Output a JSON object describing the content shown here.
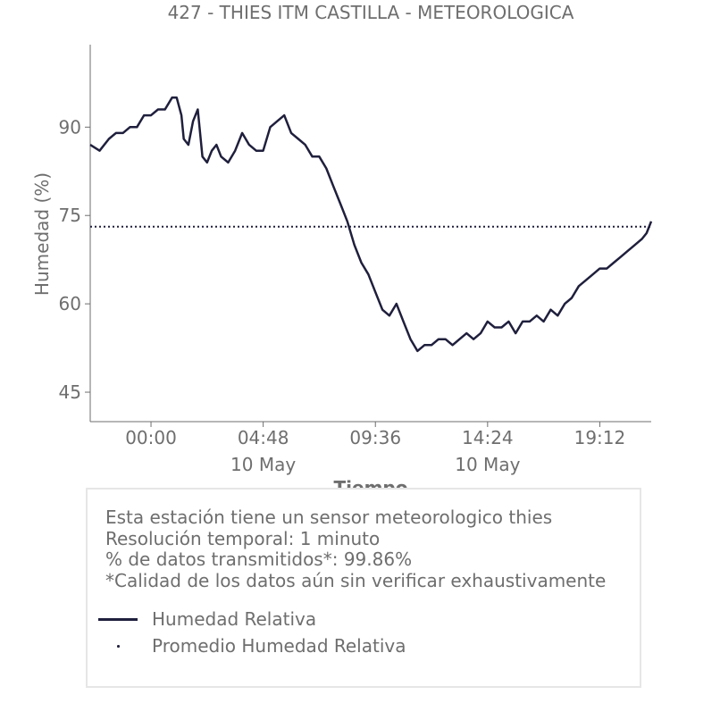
{
  "chart_data": {
    "type": "line",
    "title": "427 - THIES ITM CASTILLA - METEOROLOGICA",
    "xlabel": "Tiempo",
    "ylabel": "Humedad (%)",
    "x_unit": "hours relative to 10 May 00:00",
    "xlim": [
      -2.6,
      21.4
    ],
    "ylim": [
      40,
      104
    ],
    "x_ticks": [
      {
        "value": 0.0,
        "label": "00:00",
        "sublabel": ""
      },
      {
        "value": 4.8,
        "label": "04:48",
        "sublabel": "10 May"
      },
      {
        "value": 9.6,
        "label": "09:36",
        "sublabel": ""
      },
      {
        "value": 14.4,
        "label": "14:24",
        "sublabel": "10 May"
      },
      {
        "value": 19.2,
        "label": "19:12",
        "sublabel": ""
      }
    ],
    "y_ticks": [
      45,
      60,
      75,
      90
    ],
    "grid": false,
    "series": [
      {
        "name": "Humedad Relativa",
        "color": "#1f1f3d",
        "style": "solid",
        "x": [
          -2.6,
          -2.2,
          -1.8,
          -1.5,
          -1.2,
          -0.9,
          -0.6,
          -0.3,
          0.0,
          0.3,
          0.6,
          0.9,
          1.1,
          1.3,
          1.4,
          1.6,
          1.8,
          2.0,
          2.2,
          2.4,
          2.6,
          2.8,
          3.0,
          3.3,
          3.6,
          3.9,
          4.2,
          4.5,
          4.8,
          5.1,
          5.4,
          5.7,
          6.0,
          6.3,
          6.6,
          6.9,
          7.2,
          7.5,
          7.8,
          8.1,
          8.4,
          8.7,
          9.0,
          9.3,
          9.6,
          9.9,
          10.2,
          10.5,
          10.8,
          11.1,
          11.4,
          11.7,
          12.0,
          12.3,
          12.6,
          12.9,
          13.2,
          13.5,
          13.8,
          14.1,
          14.4,
          14.7,
          15.0,
          15.3,
          15.6,
          15.9,
          16.2,
          16.5,
          16.8,
          17.1,
          17.4,
          17.7,
          18.0,
          18.3,
          18.6,
          18.9,
          19.2,
          19.5,
          19.8,
          20.1,
          20.4,
          20.7,
          21.0,
          21.2,
          21.4
        ],
        "y": [
          87,
          86,
          88,
          89,
          89,
          90,
          90,
          92,
          92,
          93,
          93,
          95,
          95,
          92,
          88,
          87,
          91,
          93,
          85,
          84,
          86,
          87,
          85,
          84,
          86,
          89,
          87,
          86,
          86,
          90,
          91,
          92,
          89,
          88,
          87,
          85,
          85,
          83,
          80,
          77,
          74,
          70,
          67,
          65,
          62,
          59,
          58,
          60,
          57,
          54,
          52,
          53,
          53,
          54,
          54,
          53,
          54,
          55,
          54,
          55,
          57,
          56,
          56,
          57,
          55,
          57,
          57,
          58,
          57,
          59,
          58,
          60,
          61,
          63,
          64,
          65,
          66,
          66,
          67,
          68,
          69,
          70,
          71,
          72,
          74
        ]
      },
      {
        "name": "Promedio Humedad Relativa",
        "color": "#1f1f3d",
        "style": "dotted",
        "value": 73.1
      }
    ],
    "legend_position": "bottom",
    "info": [
      "Esta estación tiene un sensor meteorologico thies",
      "Resolución temporal: 1 minuto",
      "% de datos transmitidos*: 99.86%",
      "*Calidad de los datos aún sin verificar exhaustivamente"
    ]
  }
}
